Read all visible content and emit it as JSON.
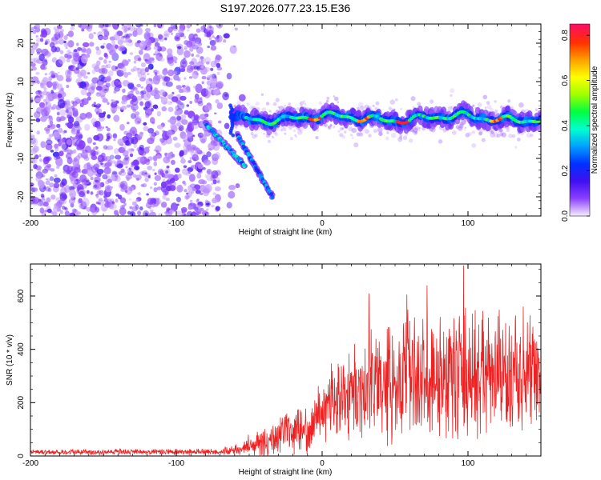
{
  "title": "S197.2026.077.23.15.E36",
  "chart_data": [
    {
      "type": "heatmap",
      "xlabel": "Height of straight line (km)",
      "ylabel": "Frequency (Hz)",
      "xlim": [
        -200,
        150
      ],
      "ylim": [
        -25,
        25
      ],
      "xticks": [
        -200,
        -100,
        0,
        100
      ],
      "yticks": [
        -20,
        -10,
        0,
        10,
        20
      ],
      "colorbar": {
        "label": "Normalized spectral amplitude",
        "range": [
          0,
          0.85
        ],
        "ticks": [
          "0.0",
          "0.2",
          "0.4",
          "0.6",
          "0.8"
        ],
        "tick_values": [
          0.0,
          0.2,
          0.4,
          0.6,
          0.8
        ],
        "colormap": [
          "#f4ecff",
          "#8a40ff",
          "#4010f0",
          "#0030ff",
          "#00a0ff",
          "#00ffd0",
          "#00ff40",
          "#a0ff00",
          "#ffff00",
          "#ffa000",
          "#ff3000",
          "#ff1060"
        ]
      },
      "features": [
        {
          "name": "noise",
          "x_range": [
            -200,
            -70
          ],
          "freq_range": [
            -25,
            25
          ],
          "amplitude": 0.1
        },
        {
          "name": "descending-trace-1",
          "from": [
            -80,
            -1
          ],
          "to": [
            -53,
            -12
          ],
          "amplitude": 0.35
        },
        {
          "name": "descending-trace-2",
          "from": [
            -58,
            -4
          ],
          "to": [
            -34,
            -20
          ],
          "amplitude": 0.3
        },
        {
          "name": "main-trace",
          "x_range": [
            -62,
            150
          ],
          "frequency": 0.5,
          "amplitude": 0.55,
          "peak_x": [
            -5,
            28,
            55,
            120
          ]
        }
      ]
    },
    {
      "type": "line",
      "xlabel": "Height of straight line (km)",
      "ylabel": "SNR (10 * v/v)",
      "xlim": [
        -200,
        150
      ],
      "ylim": [
        0,
        720
      ],
      "xticks": [
        -200,
        -100,
        0,
        100
      ],
      "yticks": [
        0,
        200,
        400,
        600
      ],
      "color": "#ee2222",
      "envelope": [
        {
          "x": -200,
          "base": 15,
          "amp": 10
        },
        {
          "x": -70,
          "base": 15,
          "amp": 12
        },
        {
          "x": -55,
          "base": 25,
          "amp": 25
        },
        {
          "x": -45,
          "base": 50,
          "amp": 55
        },
        {
          "x": -30,
          "base": 80,
          "amp": 70
        },
        {
          "x": -10,
          "base": 100,
          "amp": 80
        },
        {
          "x": 0,
          "base": 180,
          "amp": 110
        },
        {
          "x": 20,
          "base": 250,
          "amp": 180
        },
        {
          "x": 60,
          "base": 300,
          "amp": 230
        },
        {
          "x": 100,
          "base": 300,
          "amp": 250
        },
        {
          "x": 150,
          "base": 290,
          "amp": 200
        }
      ],
      "peaks": [
        {
          "x": 32,
          "y": 610
        },
        {
          "x": 58,
          "y": 605
        },
        {
          "x": 72,
          "y": 640
        },
        {
          "x": 97,
          "y": 715
        },
        {
          "x": 138,
          "y": 560
        }
      ]
    }
  ]
}
